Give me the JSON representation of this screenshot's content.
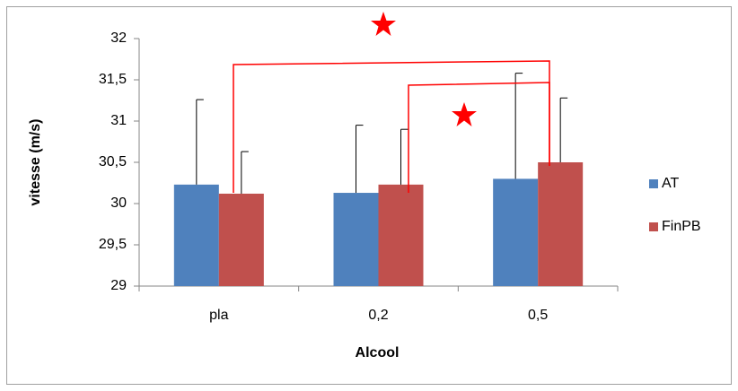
{
  "chart_data": {
    "type": "bar",
    "x_label": "Alcool",
    "y_label": "vitesse (m/s)",
    "categories": [
      "pla",
      "0,2",
      "0,5"
    ],
    "series": [
      {
        "name": "AT",
        "color": "#4f81bd",
        "values": [
          30.23,
          30.13,
          30.3
        ],
        "errors": [
          1.03,
          0.82,
          1.28
        ]
      },
      {
        "name": "FinPB",
        "color": "#c0504d",
        "values": [
          30.12,
          30.23,
          30.5
        ],
        "errors": [
          0.51,
          0.67,
          0.78
        ]
      }
    ],
    "ylim": [
      29,
      32
    ],
    "yticks": [
      29,
      {
        "value": 29.5,
        "label": "29,5"
      },
      30,
      {
        "value": 30.5,
        "label": "30,5"
      },
      31,
      {
        "value": 31.5,
        "label": "31,5"
      },
      32
    ],
    "legend": "right"
  }
}
